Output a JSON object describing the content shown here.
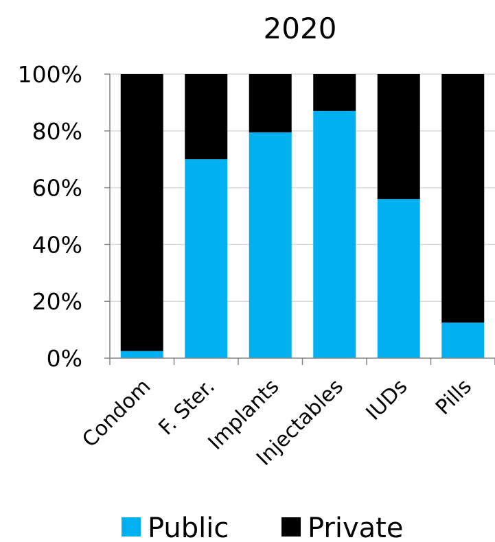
{
  "chart_data": {
    "type": "bar",
    "stacked": true,
    "normalized": true,
    "title": "2020",
    "xlabel": "",
    "ylabel": "",
    "categories": [
      "Condom",
      "F. Ster.",
      "Implants",
      "Injectables",
      "IUDs",
      "Pills"
    ],
    "series": [
      {
        "name": "Public",
        "color": "#00b0f0",
        "values": [
          2.5,
          70,
          79.5,
          87,
          56,
          12.5
        ]
      },
      {
        "name": "Private",
        "color": "#000000",
        "values": [
          97.5,
          30,
          20.5,
          13,
          44,
          87.5
        ]
      }
    ],
    "ylim": [
      0,
      100
    ],
    "yticks": [
      0,
      20,
      40,
      60,
      80,
      100
    ],
    "ytick_labels": [
      "0%",
      "20%",
      "40%",
      "60%",
      "80%",
      "100%"
    ],
    "grid": true,
    "legend_position": "bottom"
  }
}
